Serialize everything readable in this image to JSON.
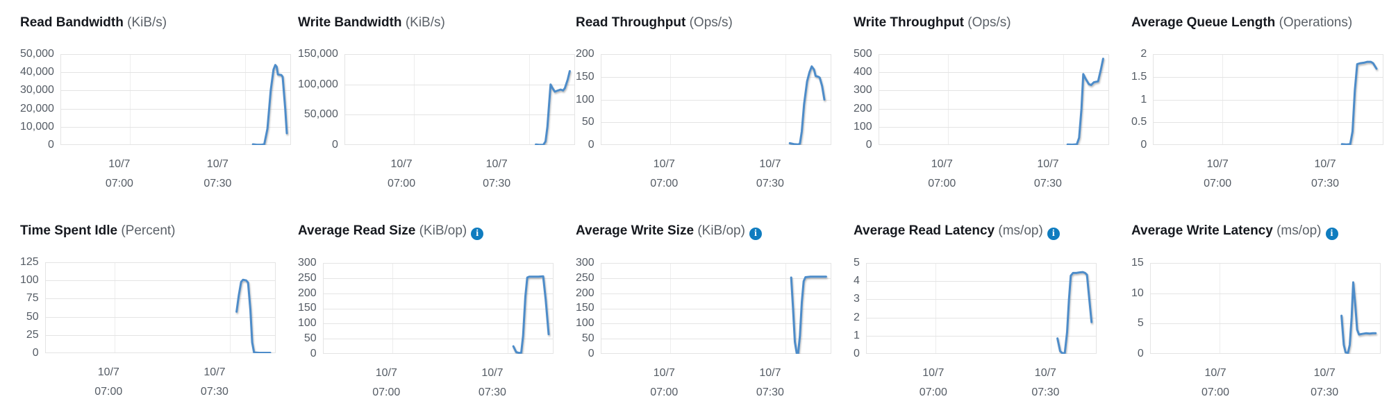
{
  "page": {
    "background": "#ffffff",
    "description_title": "EBS volume monitoring metric charts"
  },
  "icons": {
    "info_glyph": "i"
  },
  "colors": {
    "line": "#4e8cc9",
    "line_shadow": "rgba(60,60,60,0.35)",
    "grid_h": "#e4e4e4",
    "grid_v": "#ededed",
    "plot_border": "#e4e4e4",
    "title_text": "#16191f",
    "unit_text": "#5b6168",
    "axis_text": "#545b64",
    "info_icon_bg": "#0f7cbf"
  },
  "x_axis": {
    "ticks": [
      {
        "frac": 0.3,
        "date": "10/7",
        "time": "07:00"
      },
      {
        "frac": 0.8,
        "date": "10/7",
        "time": "07:30"
      }
    ],
    "gridlines": true,
    "note_interval": "30 min between vertical gridlines"
  },
  "chart_data": [
    {
      "type": "line",
      "title": "Read Bandwidth",
      "unit": "(KiB/s)",
      "info_icon": false,
      "ylim": [
        0,
        50000
      ],
      "y_ticks": [
        "50,000",
        "40,000",
        "30,000",
        "20,000",
        "10,000",
        "0"
      ],
      "grid": true,
      "legend": "none",
      "series": [
        {
          "name": "Read Bandwidth",
          "points": [
            [
              0.835,
              400
            ],
            [
              0.852,
              150
            ],
            [
              0.873,
              200
            ],
            [
              0.884,
              400
            ],
            [
              0.898,
              9000
            ],
            [
              0.912,
              30000
            ],
            [
              0.924,
              41500
            ],
            [
              0.932,
              44000
            ],
            [
              0.938,
              43000
            ],
            [
              0.943,
              38800
            ],
            [
              0.958,
              38500
            ],
            [
              0.964,
              37500
            ],
            [
              0.975,
              20000
            ],
            [
              0.982,
              6500
            ]
          ]
        }
      ]
    },
    {
      "type": "line",
      "title": "Write Bandwidth",
      "unit": "(KiB/s)",
      "info_icon": false,
      "ylim": [
        0,
        150000
      ],
      "y_ticks": [
        "150,000",
        "100,000",
        "50,000",
        "0"
      ],
      "grid": true,
      "legend": "none",
      "series": [
        {
          "name": "Write Bandwidth",
          "points": [
            [
              0.83,
              800
            ],
            [
              0.845,
              300
            ],
            [
              0.863,
              500
            ],
            [
              0.872,
              6000
            ],
            [
              0.88,
              30000
            ],
            [
              0.888,
              70000
            ],
            [
              0.894,
              100000
            ],
            [
              0.902,
              94000
            ],
            [
              0.912,
              88000
            ],
            [
              0.926,
              90000
            ],
            [
              0.938,
              91500
            ],
            [
              0.948,
              90000
            ],
            [
              0.956,
              94000
            ],
            [
              0.968,
              108000
            ],
            [
              0.977,
              122000
            ]
          ]
        }
      ]
    },
    {
      "type": "line",
      "title": "Read Throughput",
      "unit": "(Ops/s)",
      "info_icon": false,
      "ylim": [
        0,
        200
      ],
      "y_ticks": [
        "200",
        "150",
        "100",
        "50",
        "0"
      ],
      "grid": true,
      "legend": "none",
      "series": [
        {
          "name": "Read Throughput",
          "points": [
            [
              0.82,
              4
            ],
            [
              0.838,
              2
            ],
            [
              0.856,
              1
            ],
            [
              0.864,
              3
            ],
            [
              0.872,
              30
            ],
            [
              0.882,
              90
            ],
            [
              0.895,
              140
            ],
            [
              0.905,
              160
            ],
            [
              0.915,
              173
            ],
            [
              0.925,
              166
            ],
            [
              0.932,
              152
            ],
            [
              0.945,
              150
            ],
            [
              0.95,
              148
            ],
            [
              0.96,
              130
            ],
            [
              0.97,
              100
            ]
          ]
        }
      ]
    },
    {
      "type": "line",
      "title": "Write Throughput",
      "unit": "(Ops/s)",
      "info_icon": false,
      "ylim": [
        0,
        500
      ],
      "y_ticks": [
        "500",
        "400",
        "300",
        "200",
        "100",
        "0"
      ],
      "grid": true,
      "legend": "none",
      "series": [
        {
          "name": "Write Throughput",
          "points": [
            [
              0.82,
              3
            ],
            [
              0.84,
              2
            ],
            [
              0.86,
              4
            ],
            [
              0.87,
              40
            ],
            [
              0.88,
              200
            ],
            [
              0.888,
              390
            ],
            [
              0.898,
              365
            ],
            [
              0.912,
              335
            ],
            [
              0.922,
              330
            ],
            [
              0.934,
              345
            ],
            [
              0.944,
              348
            ],
            [
              0.952,
              350
            ],
            [
              0.965,
              420
            ],
            [
              0.974,
              475
            ]
          ]
        }
      ]
    },
    {
      "type": "line",
      "title": "Average Queue Length",
      "unit": "(Operations)",
      "info_icon": false,
      "ylim": [
        0,
        2
      ],
      "y_ticks": [
        "2",
        "1.5",
        "1",
        "0.5",
        "0"
      ],
      "grid": true,
      "legend": "none",
      "series": [
        {
          "name": "Average Queue Length",
          "points": [
            [
              0.82,
              0.02
            ],
            [
              0.84,
              0.01
            ],
            [
              0.856,
              0.02
            ],
            [
              0.866,
              0.3
            ],
            [
              0.876,
              1.2
            ],
            [
              0.886,
              1.78
            ],
            [
              0.9,
              1.8
            ],
            [
              0.915,
              1.81
            ],
            [
              0.93,
              1.83
            ],
            [
              0.945,
              1.83
            ],
            [
              0.955,
              1.8
            ],
            [
              0.97,
              1.68
            ]
          ]
        }
      ]
    },
    {
      "type": "line",
      "title": "Time Spent Idle",
      "unit": "(Percent)",
      "info_icon": false,
      "ylim": [
        0,
        125
      ],
      "y_ticks": [
        "125",
        "100",
        "75",
        "50",
        "25",
        "0"
      ],
      "grid": true,
      "legend": "none",
      "series": [
        {
          "name": "Time Spent Idle",
          "points": [
            [
              0.83,
              57
            ],
            [
              0.84,
              80
            ],
            [
              0.85,
              98
            ],
            [
              0.858,
              101
            ],
            [
              0.872,
              100
            ],
            [
              0.88,
              97
            ],
            [
              0.89,
              60
            ],
            [
              0.898,
              15
            ],
            [
              0.906,
              1
            ],
            [
              0.93,
              0.5
            ],
            [
              0.955,
              0.5
            ],
            [
              0.976,
              0.5
            ]
          ]
        }
      ]
    },
    {
      "type": "line",
      "title": "Average Read Size",
      "unit": "(KiB/op)",
      "info_icon": true,
      "ylim": [
        0,
        300
      ],
      "y_ticks": [
        "300",
        "250",
        "200",
        "150",
        "100",
        "50",
        "0"
      ],
      "grid": true,
      "legend": "none",
      "series": [
        {
          "name": "Average Read Size",
          "points": [
            [
              0.826,
              25
            ],
            [
              0.838,
              6
            ],
            [
              0.85,
              3
            ],
            [
              0.86,
              4
            ],
            [
              0.868,
              60
            ],
            [
              0.878,
              190
            ],
            [
              0.886,
              252
            ],
            [
              0.895,
              255
            ],
            [
              0.915,
              255
            ],
            [
              0.935,
              255
            ],
            [
              0.955,
              256
            ],
            [
              0.966,
              180
            ],
            [
              0.979,
              65
            ]
          ]
        }
      ]
    },
    {
      "type": "line",
      "title": "Average Write Size",
      "unit": "(KiB/op)",
      "info_icon": true,
      "ylim": [
        0,
        300
      ],
      "y_ticks": [
        "300",
        "250",
        "200",
        "150",
        "100",
        "50",
        "0"
      ],
      "grid": true,
      "legend": "none",
      "series": [
        {
          "name": "Average Write Size",
          "points": [
            [
              0.826,
              252
            ],
            [
              0.834,
              150
            ],
            [
              0.842,
              40
            ],
            [
              0.85,
              2
            ],
            [
              0.856,
              1
            ],
            [
              0.864,
              60
            ],
            [
              0.872,
              170
            ],
            [
              0.88,
              240
            ],
            [
              0.888,
              253
            ],
            [
              0.91,
              255
            ],
            [
              0.935,
              255
            ],
            [
              0.958,
              255
            ],
            [
              0.977,
              255
            ]
          ]
        }
      ]
    },
    {
      "type": "line",
      "title": "Average Read Latency",
      "unit": "(ms/op)",
      "info_icon": true,
      "ylim": [
        0,
        5
      ],
      "y_ticks": [
        "5",
        "4",
        "3",
        "2",
        "1",
        "0"
      ],
      "grid": true,
      "legend": "none",
      "series": [
        {
          "name": "Average Read Latency",
          "points": [
            [
              0.83,
              0.85
            ],
            [
              0.842,
              0.15
            ],
            [
              0.852,
              0.03
            ],
            [
              0.862,
              0.05
            ],
            [
              0.872,
              1.2
            ],
            [
              0.88,
              3.0
            ],
            [
              0.888,
              4.3
            ],
            [
              0.898,
              4.45
            ],
            [
              0.912,
              4.45
            ],
            [
              0.926,
              4.48
            ],
            [
              0.94,
              4.5
            ],
            [
              0.95,
              4.45
            ],
            [
              0.958,
              4.35
            ],
            [
              0.97,
              2.8
            ],
            [
              0.978,
              1.75
            ]
          ]
        }
      ]
    },
    {
      "type": "line",
      "title": "Average Write Latency",
      "unit": "(ms/op)",
      "info_icon": true,
      "ylim": [
        0,
        15
      ],
      "y_ticks": [
        "15",
        "10",
        "5",
        "0"
      ],
      "grid": true,
      "legend": "none",
      "series": [
        {
          "name": "Average Write Latency",
          "points": [
            [
              0.83,
              6.3
            ],
            [
              0.84,
              1.5
            ],
            [
              0.848,
              0.25
            ],
            [
              0.858,
              0.15
            ],
            [
              0.866,
              1.5
            ],
            [
              0.874,
              6.0
            ],
            [
              0.881,
              11.8
            ],
            [
              0.89,
              8.0
            ],
            [
              0.898,
              4.0
            ],
            [
              0.906,
              3.2
            ],
            [
              0.92,
              3.3
            ],
            [
              0.936,
              3.4
            ],
            [
              0.952,
              3.35
            ],
            [
              0.966,
              3.4
            ],
            [
              0.978,
              3.4
            ]
          ]
        }
      ]
    }
  ]
}
